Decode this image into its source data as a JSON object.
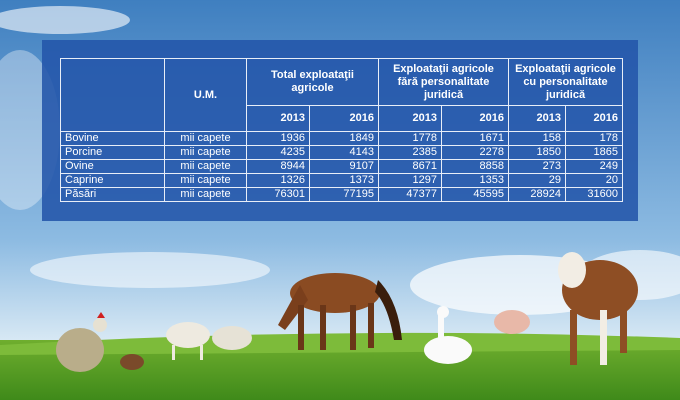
{
  "table": {
    "header": {
      "unit": "U.M.",
      "groups": [
        "Total exploataţii agricole",
        "Exploataţii agricole fără personalitate juridică",
        "Exploataţii agricole cu  personalitate juridică"
      ],
      "years": [
        "2013",
        "2016",
        "2013",
        "2016",
        "2013",
        "2016"
      ]
    },
    "rows": [
      [
        "Bovine",
        "mii capete",
        1936,
        1849,
        1778,
        1671,
        158,
        178
      ],
      [
        "Porcine",
        "mii capete",
        4235,
        4143,
        2385,
        2278,
        1850,
        1865
      ],
      [
        "Ovine",
        "mii capete",
        8944,
        9107,
        8671,
        8858,
        273,
        249
      ],
      [
        "Caprine",
        "mii capete",
        1326,
        1373,
        1297,
        1353,
        29,
        20
      ],
      [
        "Păsări",
        "mii capete",
        76301,
        77195,
        47377,
        45595,
        28924,
        31600
      ]
    ]
  }
}
